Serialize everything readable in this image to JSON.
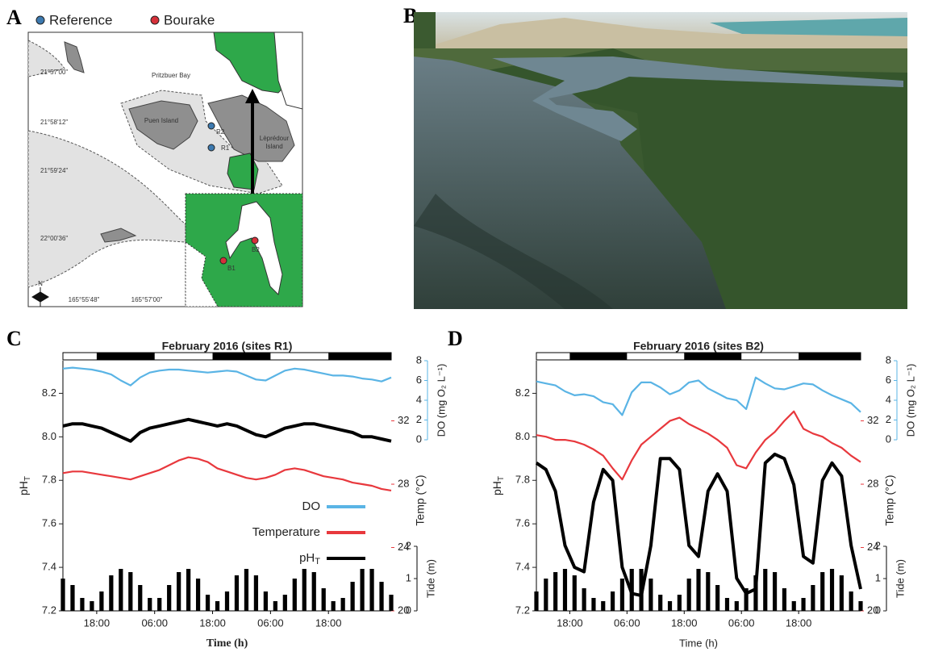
{
  "panels": [
    "A",
    "B",
    "C",
    "D"
  ],
  "map": {
    "legend": [
      {
        "label": "Reference",
        "color": "#3d7ab0"
      },
      {
        "label": "Bourake",
        "color": "#d6303a"
      }
    ],
    "sites": [
      {
        "label": "R2",
        "group": 0
      },
      {
        "label": "R1",
        "group": 0
      },
      {
        "label": "B1",
        "group": 1
      },
      {
        "label": "B2",
        "group": 1
      }
    ],
    "places": [
      "Pritzbuer Bay",
      "Puen Island",
      [
        "Lèprédour",
        "Island"
      ]
    ],
    "lat_labels": [
      "21°57'00\"",
      "21°58'12\"",
      "21°59'24\"",
      "22°00'36\""
    ],
    "lon_labels": [
      "165°55'48\"",
      "165°57'00\""
    ],
    "compass": "N"
  },
  "chart_data": [
    {
      "type": "line",
      "title": "February 2016 (sites R1)",
      "x_label": "Time (h)",
      "x": [
        0,
        2,
        4,
        6,
        8,
        10,
        12,
        14,
        16,
        18,
        20,
        22,
        24,
        26,
        28,
        30,
        32,
        34,
        36,
        38,
        40,
        42,
        44,
        46,
        48,
        50,
        52,
        54,
        56,
        58,
        60,
        62,
        64,
        66,
        68
      ],
      "xlim": [
        0,
        68
      ],
      "xticks": [
        {
          "value": 7,
          "label": "18:00"
        },
        {
          "value": 19,
          "label": "06:00"
        },
        {
          "value": 31,
          "label": "18:00"
        },
        {
          "value": 43,
          "label": "06:00"
        },
        {
          "value": 55,
          "label": "18:00"
        }
      ],
      "ylim": [
        7.2,
        8.35
      ],
      "yticks": [
        7.2,
        7.4,
        7.6,
        7.8,
        {
          "value": 8,
          "label": "8.0"
        },
        8.2
      ],
      "y_label": {
        "text": "pH",
        "sub": "T"
      },
      "y2lim": [
        20,
        35.8
      ],
      "y2ticks": [
        20,
        24,
        28,
        32
      ],
      "y2_label": "Temp (°C)",
      "y3lim": [
        0,
        8
      ],
      "y3ticks": [
        0,
        2,
        4,
        6,
        8
      ],
      "y3_label": "DO (mg O₂ L⁻¹)",
      "y4lim": [
        0,
        2
      ],
      "y4ticks": [
        0,
        1,
        2
      ],
      "y4_label": "Tide (m)",
      "legend": "center-right",
      "series": [
        {
          "name": "DO",
          "color": "#5ab4e5",
          "axis": "y3",
          "values": [
            7.2,
            7.3,
            7.2,
            7.1,
            6.9,
            6.6,
            6.0,
            5.5,
            6.3,
            6.8,
            7.0,
            7.1,
            7.1,
            7.0,
            6.9,
            6.8,
            6.9,
            7.0,
            6.9,
            6.5,
            6.1,
            6.0,
            6.5,
            7.0,
            7.2,
            7.1,
            6.9,
            6.7,
            6.5,
            6.5,
            6.4,
            6.2,
            6.1,
            5.9,
            6.3
          ]
        },
        {
          "name": "Temperature",
          "color": "#e8383d",
          "axis": "y2",
          "values": [
            28.7,
            28.8,
            28.8,
            28.7,
            28.6,
            28.5,
            28.4,
            28.3,
            28.5,
            28.7,
            28.9,
            29.2,
            29.5,
            29.7,
            29.6,
            29.4,
            29.0,
            28.8,
            28.6,
            28.4,
            28.3,
            28.4,
            28.6,
            28.9,
            29.0,
            28.9,
            28.7,
            28.5,
            28.4,
            28.3,
            28.1,
            28.0,
            27.9,
            27.7,
            27.6
          ]
        },
        {
          "name": "pH",
          "name_sub": "T",
          "color": "#000000",
          "axis": "y",
          "values": [
            8.05,
            8.06,
            8.06,
            8.05,
            8.04,
            8.02,
            8.0,
            7.98,
            8.02,
            8.04,
            8.05,
            8.06,
            8.07,
            8.08,
            8.07,
            8.06,
            8.05,
            8.06,
            8.05,
            8.03,
            8.01,
            8.0,
            8.02,
            8.04,
            8.05,
            8.06,
            8.06,
            8.05,
            8.04,
            8.03,
            8.02,
            8.0,
            8.0,
            7.99,
            7.98
          ]
        },
        {
          "type": "bar",
          "color": "#000000",
          "axis": "y4",
          "values": [
            1.0,
            0.8,
            0.4,
            0.3,
            0.6,
            1.1,
            1.3,
            1.2,
            0.8,
            0.4,
            0.4,
            0.8,
            1.2,
            1.3,
            1.0,
            0.5,
            0.3,
            0.6,
            1.1,
            1.3,
            1.1,
            0.6,
            0.3,
            0.5,
            1.0,
            1.3,
            1.2,
            0.7,
            0.3,
            0.4,
            0.9,
            1.3,
            1.3,
            0.9,
            0.5
          ]
        }
      ]
    },
    {
      "type": "line",
      "title": "February 2016 (sites B2)",
      "x_label": "Time (h)",
      "x": [
        0,
        2,
        4,
        6,
        8,
        10,
        12,
        14,
        16,
        18,
        20,
        22,
        24,
        26,
        28,
        30,
        32,
        34,
        36,
        38,
        40,
        42,
        44,
        46,
        48,
        50,
        52,
        54,
        56,
        58,
        60,
        62,
        64,
        66,
        68
      ],
      "xlim": [
        0,
        68
      ],
      "xticks": [
        {
          "value": 7,
          "label": "18:00"
        },
        {
          "value": 19,
          "label": "06:00"
        },
        {
          "value": 31,
          "label": "18:00"
        },
        {
          "value": 43,
          "label": "06:00"
        },
        {
          "value": 55,
          "label": "18:00"
        }
      ],
      "ylim": [
        7.2,
        8.35
      ],
      "yticks": [
        7.2,
        7.4,
        7.6,
        7.8,
        {
          "value": 8,
          "label": "8.0"
        },
        8.2
      ],
      "y_label": {
        "text": "pH",
        "sub": "T"
      },
      "y2lim": [
        20,
        35.8
      ],
      "y2ticks": [
        20,
        24,
        28,
        32
      ],
      "y2_label": "Temp (°C)",
      "y3lim": [
        0,
        8
      ],
      "y3ticks": [
        0,
        2,
        4,
        6,
        8
      ],
      "y3_label": "DO (mg O₂ L⁻¹)",
      "y4lim": [
        0,
        2
      ],
      "y4ticks": [
        0,
        1,
        2
      ],
      "y4_label": "Tide (m)",
      "legend": false,
      "series": [
        {
          "color": "#5ab4e5",
          "axis": "y3",
          "values": [
            5.9,
            5.7,
            5.5,
            4.9,
            4.5,
            4.6,
            4.4,
            3.8,
            3.6,
            2.5,
            4.8,
            5.8,
            5.8,
            5.3,
            4.6,
            5.0,
            5.8,
            6.0,
            5.2,
            4.7,
            4.2,
            4.0,
            3.1,
            6.3,
            5.7,
            5.2,
            5.1,
            5.4,
            5.7,
            5.6,
            5.0,
            4.5,
            4.1,
            3.7,
            2.8
          ]
        },
        {
          "color": "#e8383d",
          "axis": "y2",
          "values": [
            31.1,
            31.0,
            30.8,
            30.8,
            30.7,
            30.5,
            30.2,
            29.8,
            29.0,
            28.3,
            29.5,
            30.5,
            31.0,
            31.5,
            32.0,
            32.2,
            31.8,
            31.5,
            31.2,
            30.8,
            30.3,
            29.2,
            29.0,
            30.0,
            30.8,
            31.3,
            32.0,
            32.6,
            31.5,
            31.2,
            31.0,
            30.6,
            30.3,
            29.8,
            29.4
          ]
        },
        {
          "color": "#000000",
          "axis": "y",
          "values": [
            7.88,
            7.85,
            7.75,
            7.5,
            7.4,
            7.38,
            7.7,
            7.85,
            7.8,
            7.4,
            7.28,
            7.27,
            7.5,
            7.9,
            7.9,
            7.85,
            7.5,
            7.45,
            7.75,
            7.83,
            7.75,
            7.35,
            7.28,
            7.3,
            7.88,
            7.92,
            7.9,
            7.78,
            7.45,
            7.42,
            7.8,
            7.88,
            7.82,
            7.5,
            7.3
          ]
        },
        {
          "type": "bar",
          "color": "#000000",
          "axis": "y4",
          "values": [
            0.6,
            1.0,
            1.2,
            1.3,
            1.1,
            0.7,
            0.4,
            0.3,
            0.6,
            1.0,
            1.3,
            1.3,
            1.0,
            0.5,
            0.3,
            0.5,
            1.0,
            1.3,
            1.2,
            0.8,
            0.4,
            0.3,
            0.7,
            1.1,
            1.3,
            1.2,
            0.7,
            0.3,
            0.4,
            0.8,
            1.2,
            1.3,
            1.1,
            0.6,
            0.3
          ]
        }
      ]
    }
  ]
}
